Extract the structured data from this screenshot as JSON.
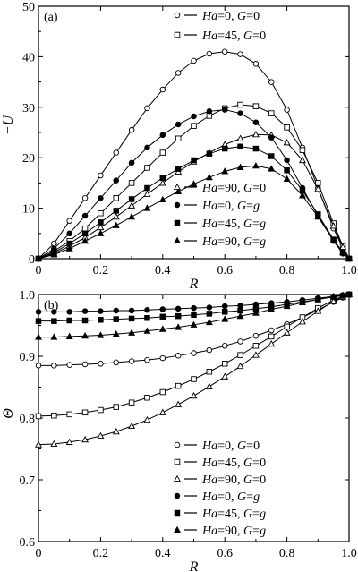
{
  "chart_data": [
    {
      "type": "line",
      "panel_label": "(a)",
      "xlabel": "R",
      "ylabel": "−U",
      "xlim": [
        0,
        1
      ],
      "ylim": [
        0,
        50
      ],
      "xticks": [
        0,
        0.2,
        0.4,
        0.6,
        0.8,
        1.0
      ],
      "xtick_labels": [
        "0",
        "0.2",
        "0.4",
        "0.6",
        "0.8",
        "1.0"
      ],
      "yticks": [
        0,
        10,
        20,
        30,
        40,
        50
      ],
      "ytick_labels": [
        "0",
        "10",
        "20",
        "30",
        "40",
        "50"
      ],
      "grid": false,
      "series": [
        {
          "name": "Ha=0, G=0",
          "legend": {
            "Ha": "0",
            "G": "0"
          },
          "marker": "circle-open",
          "x": [
            0,
            0.05,
            0.1,
            0.15,
            0.2,
            0.25,
            0.3,
            0.35,
            0.4,
            0.45,
            0.5,
            0.55,
            0.6,
            0.65,
            0.7,
            0.75,
            0.8,
            0.85,
            0.9,
            0.95,
            0.98,
            1.0
          ],
          "y": [
            0,
            3,
            7.5,
            12,
            16.5,
            21,
            25.5,
            29.8,
            33.5,
            36.8,
            39.2,
            40.6,
            41,
            40.5,
            38.6,
            35,
            29.5,
            22,
            14,
            6,
            2,
            0
          ]
        },
        {
          "name": "Ha=45, G=0",
          "legend": {
            "Ha": "45",
            "G": "0"
          },
          "marker": "square-open",
          "x": [
            0,
            0.05,
            0.1,
            0.15,
            0.2,
            0.25,
            0.3,
            0.35,
            0.4,
            0.45,
            0.5,
            0.55,
            0.6,
            0.65,
            0.7,
            0.75,
            0.8,
            0.85,
            0.9,
            0.95,
            0.98,
            1.0
          ],
          "y": [
            0,
            1.5,
            3.5,
            6,
            9,
            12,
            15,
            18,
            21,
            23.8,
            26.3,
            28.3,
            29.8,
            30.5,
            30.2,
            28.8,
            26,
            21.5,
            15,
            7,
            2.5,
            0
          ]
        },
        {
          "name": "Ha=90, G=0",
          "legend": {
            "Ha": "90",
            "G": "0"
          },
          "marker": "triangle-open",
          "x": [
            0,
            0.05,
            0.1,
            0.15,
            0.2,
            0.25,
            0.3,
            0.35,
            0.4,
            0.45,
            0.5,
            0.55,
            0.6,
            0.65,
            0.7,
            0.75,
            0.8,
            0.85,
            0.9,
            0.95,
            0.98,
            1.0
          ],
          "y": [
            0,
            1,
            2.5,
            4.2,
            6.2,
            8.3,
            10.5,
            12.8,
            15,
            17.2,
            19.2,
            21,
            22.6,
            23.8,
            24.6,
            24.5,
            23,
            19.5,
            13.8,
            6.5,
            2.3,
            0
          ]
        },
        {
          "name": "Ha=0, G=g",
          "legend": {
            "Ha": "0",
            "G": "g"
          },
          "marker": "circle-filled",
          "x": [
            0,
            0.05,
            0.1,
            0.15,
            0.2,
            0.25,
            0.3,
            0.35,
            0.4,
            0.45,
            0.5,
            0.55,
            0.6,
            0.65,
            0.7,
            0.75,
            0.8,
            0.85,
            0.9,
            0.95,
            0.98,
            1.0
          ],
          "y": [
            0,
            2,
            5,
            8.5,
            12,
            15.5,
            19,
            22,
            24.5,
            26.6,
            28.2,
            29.2,
            29.5,
            28.8,
            27,
            24,
            19.5,
            14,
            8.5,
            3.5,
            1,
            0
          ]
        },
        {
          "name": "Ha=45, G=g",
          "legend": {
            "Ha": "45",
            "G": "g"
          },
          "marker": "square-filled",
          "x": [
            0,
            0.05,
            0.1,
            0.15,
            0.2,
            0.25,
            0.3,
            0.35,
            0.4,
            0.45,
            0.5,
            0.55,
            0.6,
            0.65,
            0.7,
            0.75,
            0.8,
            0.85,
            0.9,
            0.95,
            0.98,
            1.0
          ],
          "y": [
            0,
            1.2,
            3,
            5,
            7.2,
            9.5,
            11.8,
            14,
            16,
            17.8,
            19.5,
            20.8,
            21.8,
            22.2,
            21.8,
            20.3,
            17.5,
            13.5,
            8.8,
            3.8,
            1.2,
            0
          ]
        },
        {
          "name": "Ha=90, G=g",
          "legend": {
            "Ha": "90",
            "G": "g"
          },
          "marker": "triangle-filled",
          "x": [
            0,
            0.05,
            0.1,
            0.15,
            0.2,
            0.25,
            0.3,
            0.35,
            0.4,
            0.45,
            0.5,
            0.55,
            0.6,
            0.65,
            0.7,
            0.75,
            0.8,
            0.85,
            0.9,
            0.95,
            0.98,
            1.0
          ],
          "y": [
            0,
            0.8,
            2,
            3.5,
            5,
            6.6,
            8.3,
            10,
            11.7,
            13.3,
            14.8,
            16.1,
            17.3,
            18.1,
            18.4,
            17.8,
            15.8,
            12.5,
            8.3,
            3.6,
            1.2,
            0
          ]
        }
      ]
    },
    {
      "type": "line",
      "panel_label": "(b)",
      "xlabel": "R",
      "ylabel": "Θ",
      "xlim": [
        0,
        1
      ],
      "ylim": [
        0.6,
        1.0
      ],
      "xticks": [
        0,
        0.2,
        0.4,
        0.6,
        0.8,
        1.0
      ],
      "xtick_labels": [
        "0",
        "0.2",
        "0.4",
        "0.6",
        "0.8",
        "1.0"
      ],
      "yticks": [
        0.6,
        0.7,
        0.8,
        0.9,
        1.0
      ],
      "ytick_labels": [
        "0.6",
        "0.7",
        "0.8",
        "0.9",
        "1.0"
      ],
      "grid": false,
      "series": [
        {
          "name": "Ha=0, G=0",
          "legend": {
            "Ha": "0",
            "G": "0"
          },
          "marker": "circle-open",
          "x": [
            0,
            0.05,
            0.1,
            0.15,
            0.2,
            0.25,
            0.3,
            0.35,
            0.4,
            0.45,
            0.5,
            0.55,
            0.6,
            0.65,
            0.7,
            0.75,
            0.8,
            0.85,
            0.9,
            0.95,
            0.98,
            1.0
          ],
          "y": [
            0.885,
            0.885,
            0.886,
            0.887,
            0.888,
            0.89,
            0.892,
            0.894,
            0.897,
            0.901,
            0.905,
            0.91,
            0.917,
            0.924,
            0.933,
            0.942,
            0.952,
            0.963,
            0.975,
            0.988,
            0.995,
            1.0
          ]
        },
        {
          "name": "Ha=45, G=0",
          "legend": {
            "Ha": "45",
            "G": "0"
          },
          "marker": "square-open",
          "x": [
            0,
            0.05,
            0.1,
            0.15,
            0.2,
            0.25,
            0.3,
            0.35,
            0.4,
            0.45,
            0.5,
            0.55,
            0.6,
            0.65,
            0.7,
            0.75,
            0.8,
            0.85,
            0.9,
            0.95,
            0.98,
            1.0
          ],
          "y": [
            0.803,
            0.804,
            0.806,
            0.809,
            0.813,
            0.818,
            0.825,
            0.833,
            0.842,
            0.852,
            0.863,
            0.875,
            0.888,
            0.902,
            0.917,
            0.932,
            0.948,
            0.963,
            0.978,
            0.991,
            0.997,
            1.0
          ]
        },
        {
          "name": "Ha=90, G=0",
          "legend": {
            "Ha": "90",
            "G": "0"
          },
          "marker": "triangle-open",
          "x": [
            0,
            0.05,
            0.1,
            0.15,
            0.2,
            0.25,
            0.3,
            0.35,
            0.4,
            0.45,
            0.5,
            0.55,
            0.6,
            0.65,
            0.7,
            0.75,
            0.8,
            0.85,
            0.9,
            0.95,
            0.98,
            1.0
          ],
          "y": [
            0.757,
            0.758,
            0.761,
            0.765,
            0.771,
            0.778,
            0.787,
            0.797,
            0.809,
            0.822,
            0.836,
            0.851,
            0.867,
            0.884,
            0.902,
            0.92,
            0.938,
            0.956,
            0.973,
            0.989,
            0.996,
            1.0
          ]
        },
        {
          "name": "Ha=0, G=g",
          "legend": {
            "Ha": "0",
            "G": "g"
          },
          "marker": "circle-filled",
          "x": [
            0,
            0.05,
            0.1,
            0.15,
            0.2,
            0.25,
            0.3,
            0.35,
            0.4,
            0.45,
            0.5,
            0.55,
            0.6,
            0.65,
            0.7,
            0.75,
            0.8,
            0.85,
            0.9,
            0.95,
            0.98,
            1.0
          ],
          "y": [
            0.972,
            0.972,
            0.972,
            0.973,
            0.973,
            0.974,
            0.974,
            0.975,
            0.976,
            0.977,
            0.978,
            0.979,
            0.981,
            0.982,
            0.984,
            0.986,
            0.988,
            0.991,
            0.994,
            0.997,
            0.999,
            1.0
          ]
        },
        {
          "name": "Ha=45, G=g",
          "legend": {
            "Ha": "45",
            "G": "g"
          },
          "marker": "square-filled",
          "x": [
            0,
            0.05,
            0.1,
            0.15,
            0.2,
            0.25,
            0.3,
            0.35,
            0.4,
            0.45,
            0.5,
            0.55,
            0.6,
            0.65,
            0.7,
            0.75,
            0.8,
            0.85,
            0.9,
            0.95,
            0.98,
            1.0
          ],
          "y": [
            0.957,
            0.957,
            0.958,
            0.958,
            0.959,
            0.96,
            0.961,
            0.962,
            0.964,
            0.965,
            0.967,
            0.969,
            0.972,
            0.974,
            0.977,
            0.98,
            0.984,
            0.988,
            0.992,
            0.996,
            0.998,
            1.0
          ]
        },
        {
          "name": "Ha=90, G=g",
          "legend": {
            "Ha": "90",
            "G": "g"
          },
          "marker": "triangle-filled",
          "x": [
            0,
            0.05,
            0.1,
            0.15,
            0.2,
            0.25,
            0.3,
            0.35,
            0.4,
            0.45,
            0.5,
            0.55,
            0.6,
            0.65,
            0.7,
            0.75,
            0.8,
            0.85,
            0.9,
            0.95,
            0.98,
            1.0
          ],
          "y": [
            0.931,
            0.931,
            0.932,
            0.933,
            0.934,
            0.936,
            0.938,
            0.941,
            0.944,
            0.947,
            0.951,
            0.955,
            0.96,
            0.965,
            0.97,
            0.976,
            0.981,
            0.987,
            0.992,
            0.997,
            0.999,
            1.0
          ]
        }
      ]
    }
  ]
}
